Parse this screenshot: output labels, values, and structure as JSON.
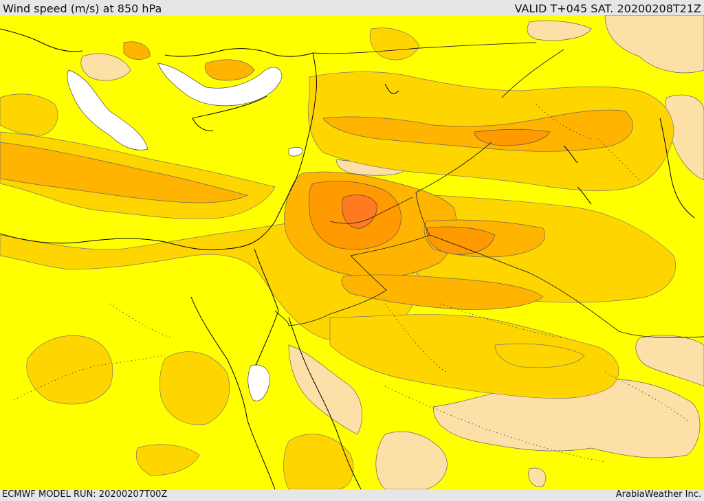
{
  "header": {
    "title": "Wind speed (m/s) at 850 hPa",
    "valid": "VALID T+045 SAT. 20200208T21Z"
  },
  "footer": {
    "model_run": "ECMWF MODEL RUN: 20200207T00Z",
    "credit": "ArabiaWeather Inc."
  },
  "colors": {
    "calm": "#ffffff",
    "light": "#fde0a8",
    "base": "#ffff00",
    "level1": "#ffd500",
    "level2": "#ffb400",
    "level3": "#ff9a00",
    "level4": "#ff7a20"
  }
}
